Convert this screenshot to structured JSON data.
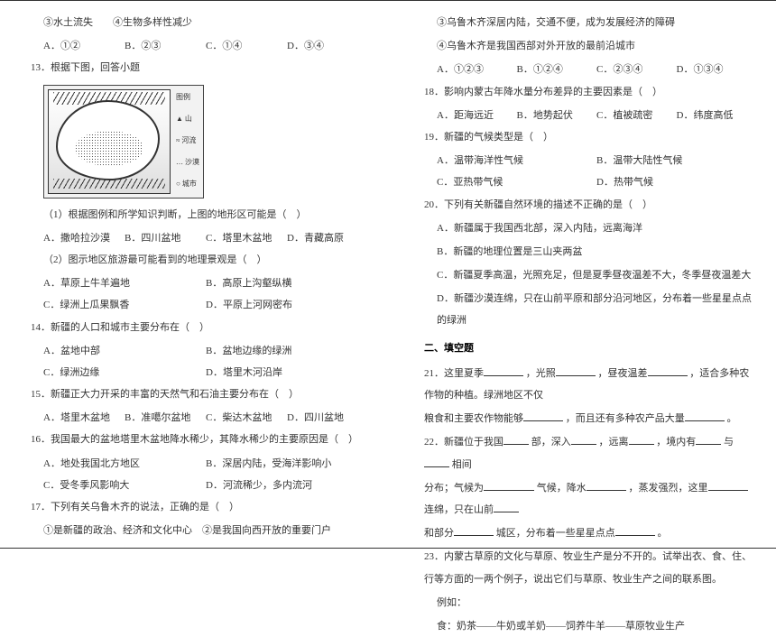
{
  "left": {
    "l1": "③水土流失　　④生物多样性减少",
    "opts1": [
      "A．①②",
      "B．②③",
      "C．①④",
      "D．③④"
    ],
    "q13": "13．根据下图，回答小题",
    "legend": [
      "图例",
      "▲ 山",
      "≈ 河流",
      "… 沙漠",
      "○ 城市"
    ],
    "sub1": "（1）根据图例和所学知识判断，上图的地形区可能是（　）",
    "opts2": [
      "A．撒哈拉沙漠",
      "B．四川盆地",
      "C．塔里木盆地",
      "D．青藏高原"
    ],
    "sub2": "（2）图示地区旅游最可能看到的地理景观是（　）",
    "opts3a": [
      "A．草原上牛羊遍地",
      "B．高原上沟壑纵横"
    ],
    "opts3b": [
      "C．绿洲上瓜果飘香",
      "D．平原上河网密布"
    ],
    "q14": "14．新疆的人口和城市主要分布在（　）",
    "opts4a": [
      "A．盆地中部",
      "B．盆地边缘的绿洲"
    ],
    "opts4b": [
      "C．绿洲边缘",
      "D．塔里木河沿岸"
    ],
    "q15": "15．新疆正大力开采的丰富的天然气和石油主要分布在（　）",
    "opts5": [
      "A．塔里木盆地",
      "B．准噶尔盆地",
      "C．柴达木盆地",
      "D．四川盆地"
    ],
    "q16": "16．我国最大的盆地塔里木盆地降水稀少，其降水稀少的主要原因是（　）",
    "opts6a": [
      "A．地处我国北方地区",
      "B．深居内陆，受海洋影响小"
    ],
    "opts6b": [
      "C．受冬季风影响大",
      "D．河流稀少，多内流河"
    ],
    "q17": "17．下列有关乌鲁木齐的说法，正确的是（　）",
    "q17a": "①是新疆的政治、经济和文化中心　②是我国向西开放的重要门户"
  },
  "right": {
    "r1": "③乌鲁木齐深居内陆，交通不便，成为发展经济的障碍",
    "r2": "④乌鲁木齐是我国西部对外开放的最前沿城市",
    "opts7": [
      "A．①②③",
      "B．①②④",
      "C．②③④",
      "D．①③④"
    ],
    "q18": "18．影响内蒙古年降水量分布差异的主要因素是（　）",
    "opts8": [
      "A．距海远近",
      "B．地势起伏",
      "C．植被疏密",
      "D．纬度高低"
    ],
    "q19": "19．新疆的气候类型是（　）",
    "opts9a": [
      "A．温带海洋性气候",
      "B．温带大陆性气候"
    ],
    "opts9b": [
      "C．亚热带气候",
      "D．热带气候"
    ],
    "q20": "20．下列有关新疆自然环境的描述不正确的是（　）",
    "q20a": "A．新疆属于我国西北部，深入内陆，远离海洋",
    "q20b": "B．新疆的地理位置是三山夹两盆",
    "q20c": "C．新疆夏季高温，光照充足，但是夏季昼夜温差不大，冬季昼夜温差大",
    "q20d": "D．新疆沙漠连绵，只在山前平原和部分沿河地区，分布着一些星星点点的绿洲",
    "sec2": "二、填空题",
    "q21a": "21．这里夏季",
    "q21b": "，光照",
    "q21c": "，昼夜温差",
    "q21d": "，适合多种农作物的种植。绿洲地区不仅",
    "q21e": "粮食和主要农作物能够",
    "q21f": "，而且还有多种农产品大量",
    "q21g": "。",
    "q22a": "22．新疆位于我国",
    "q22b": "部，深入",
    "q22c": "，远离",
    "q22d": "，境内有",
    "q22e": "与",
    "q22f": "相间",
    "q22g": "分布；气候为",
    "q22h": "气候，降水",
    "q22i": "，蒸发强烈，这里",
    "q22j": "连绵，只在山前",
    "q22k": "和部分",
    "q22l": "城区，分布着一些星星点点",
    "q22m": "。",
    "q23": "23．内蒙古草原的文化与草原、牧业生产是分不开的。试举出衣、食、住、行等方面的一两个例子，说出它们与草原、牧业生产之间的联系图。",
    "ex": "例如：",
    "food": "食：奶茶——牛奶或羊奶——饲养牛羊——草原牧业生产"
  }
}
